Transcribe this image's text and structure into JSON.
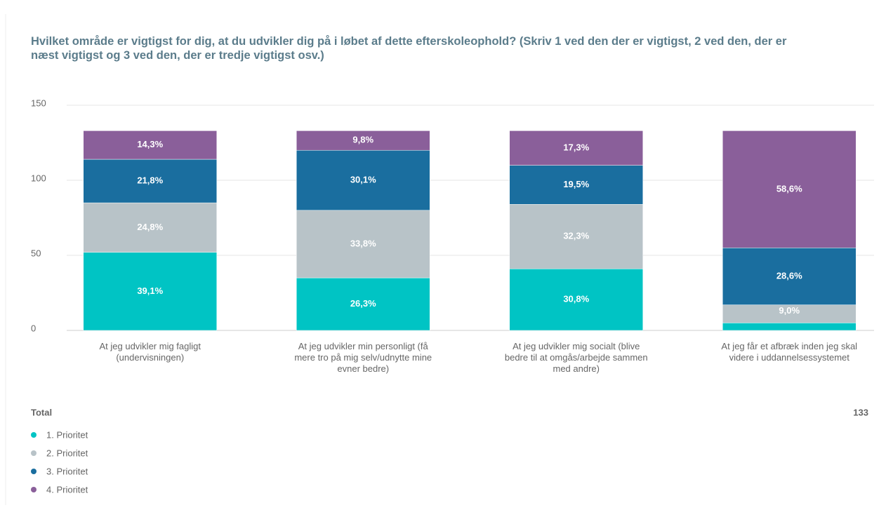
{
  "chart_data": {
    "type": "stacked_bar",
    "title": "Hvilket område er vigtigst for dig, at du udvikler dig på i løbet af dette efterskoleophold? (Skriv 1 ved den der er vigtigst, 2 ved den, der er næst vigtigst og 3 ved den, der er tredje vigtigst osv.)",
    "categories": [
      "At jeg udvikler mig fagligt (undervisningen)",
      "At jeg udvikler min personligt (få mere tro på mig selv/udnytte mine evner bedre)",
      "At jeg udvikler mig socialt (blive bedre til at omgås/arbejde sammen med andre)",
      "At jeg får et afbræk inden jeg skal videre i uddannelsessystemet"
    ],
    "series": [
      {
        "name": "1. Prioritet",
        "color": "#00c4c4",
        "values": [
          52,
          35,
          41,
          5
        ],
        "value_labels": [
          "39,1%",
          "26,3%",
          "30,8%",
          null
        ]
      },
      {
        "name": "2. Prioritet",
        "color": "#b8c3c8",
        "values": [
          33,
          45,
          43,
          12
        ],
        "value_labels": [
          "24,8%",
          "33,8%",
          "32,3%",
          "9,0%"
        ]
      },
      {
        "name": "3. Prioritet",
        "color": "#1a6e9f",
        "values": [
          29,
          40,
          26,
          38
        ],
        "value_labels": [
          "21,8%",
          "30,1%",
          "19,5%",
          "28,6%"
        ]
      },
      {
        "name": "4. Prioritet",
        "color": "#8a5f9a",
        "values": [
          19,
          13,
          23,
          78
        ],
        "value_labels": [
          "14,3%",
          "9,8%",
          "17,3%",
          "58,6%"
        ]
      }
    ],
    "ylim": [
      0,
      150
    ],
    "yticks": [
      0,
      50,
      100,
      150
    ],
    "grid": true,
    "total_label": "Total",
    "total": 133
  }
}
